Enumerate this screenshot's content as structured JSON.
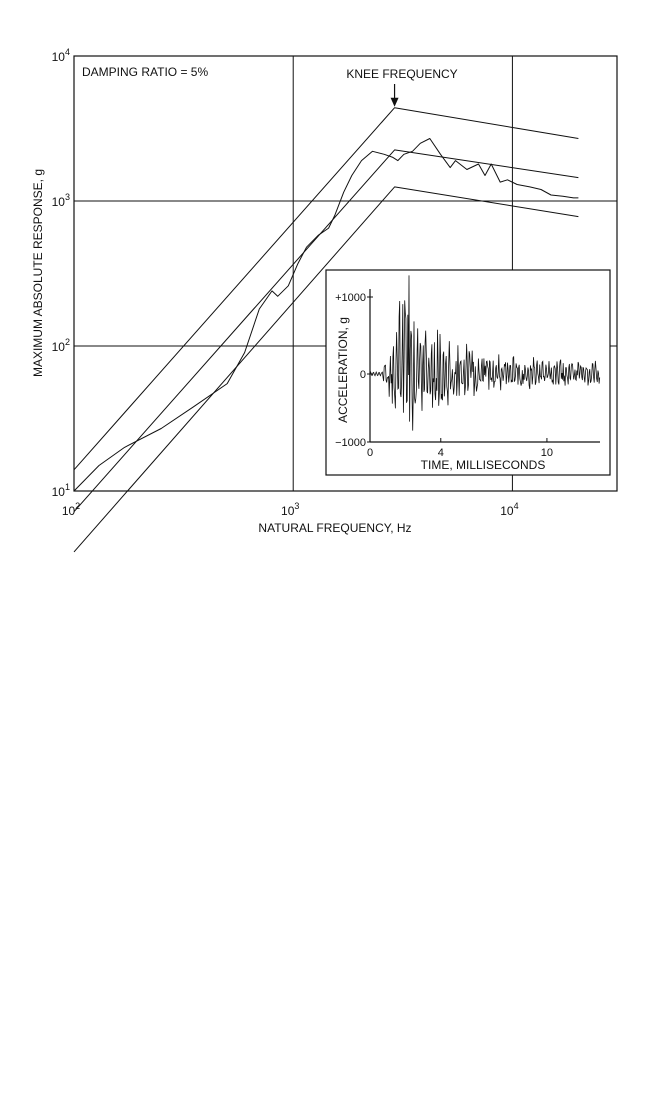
{
  "chart_data": [
    {
      "type": "line",
      "title": "",
      "xlabel": "NATURAL FREQUENCY, Hz",
      "ylabel": "MAXIMUM ABSOLUTE RESPONSE, g",
      "xscale": "log",
      "yscale": "log",
      "xlim": [
        100,
        30000
      ],
      "ylim": [
        10,
        10000
      ],
      "grid": true,
      "x_ticks": [
        {
          "base": "10",
          "exp": "2",
          "value": 100
        },
        {
          "base": "10",
          "exp": "3",
          "value": 1000
        },
        {
          "base": "10",
          "exp": "4",
          "value": 10000
        }
      ],
      "y_ticks": [
        {
          "base": "10",
          "exp": "1",
          "value": 10
        },
        {
          "base": "10",
          "exp": "2",
          "value": 100
        },
        {
          "base": "10",
          "exp": "3",
          "value": 1000
        },
        {
          "base": "10",
          "exp": "4",
          "value": 10000
        }
      ],
      "annotations": {
        "damping": "DAMPING RATIO = 5%",
        "knee": "KNEE FREQUENCY",
        "knee_x": 2900
      },
      "series": [
        {
          "x": [
            100,
            2900,
            20000
          ],
          "y": [
            14,
            4400,
            2700
          ]
        },
        {
          "x": [
            100,
            2900,
            20000
          ],
          "y": [
            7.2,
            2250,
            1450
          ]
        },
        {
          "x": [
            100,
            2900,
            20000
          ],
          "y": [
            3.8,
            1250,
            780
          ]
        },
        {
          "x": [
            100,
            130,
            170,
            250,
            350,
            500,
            600,
            700,
            800,
            850,
            950,
            1050,
            1150,
            1300,
            1450,
            1550,
            1700,
            1850,
            2050,
            2300,
            2600,
            2850,
            3000,
            3200,
            3500,
            3800,
            4200,
            4700,
            5200,
            5500,
            6200,
            7000,
            7500,
            8000,
            8800,
            9500,
            10500,
            12000,
            13500,
            15000,
            17000,
            19000,
            20000
          ],
          "y": [
            10,
            15,
            20,
            27,
            38,
            55,
            90,
            180,
            240,
            220,
            260,
            370,
            480,
            580,
            650,
            800,
            1150,
            1500,
            1900,
            2200,
            2100,
            2000,
            1900,
            2100,
            2200,
            2500,
            2700,
            2100,
            1700,
            1900,
            1650,
            1800,
            1500,
            1800,
            1350,
            1400,
            1300,
            1250,
            1200,
            1100,
            1080,
            1050,
            1050
          ]
        }
      ]
    },
    {
      "type": "line",
      "title": "",
      "xlabel": "TIME, MILLISECONDS",
      "ylabel": "ACCELERATION, g",
      "xlim": [
        0,
        13
      ],
      "ylim": [
        -1000,
        1200
      ],
      "x_ticks": [
        "0",
        "4",
        "10"
      ],
      "x_tick_values": [
        0,
        4,
        10
      ],
      "y_ticks": [
        "+1000",
        "0",
        "−1000"
      ],
      "y_tick_values": [
        1000,
        0,
        -1000
      ],
      "series": [
        {
          "envelope": {
            "onset_ms": 0.6,
            "peak_ms": 1.8,
            "peak_g": 950,
            "decay_ms": 2.6,
            "residual_g": 170,
            "spike_g": 1280
          }
        }
      ]
    }
  ]
}
